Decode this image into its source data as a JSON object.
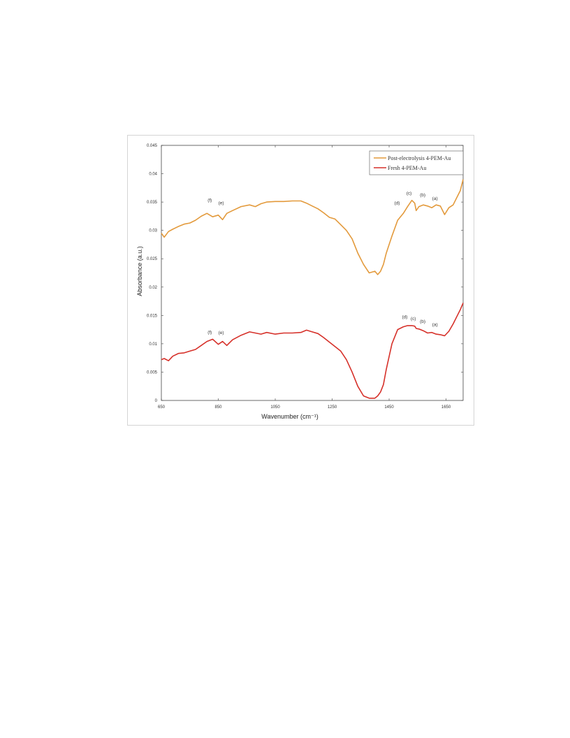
{
  "chart_data": {
    "type": "line",
    "xlabel": "Wavenumber (cm⁻¹)",
    "ylabel": "Absorbance (a.u.)",
    "xlim": [
      650,
      1710
    ],
    "ylim": [
      0,
      0.045
    ],
    "xticks": [
      650,
      850,
      1050,
      1250,
      1450,
      1650
    ],
    "xtick_labels": [
      "650",
      "850",
      "1050",
      "1250",
      "1450",
      "1650"
    ],
    "yticks": [
      0,
      0.005,
      0.01,
      0.015,
      0.02,
      0.025,
      0.03,
      0.035,
      0.04,
      0.045
    ],
    "ytick_labels": [
      "0",
      "0.005",
      "0.01",
      "0.015",
      "0.02",
      "0.025",
      "0.03",
      "0.035",
      "0.04",
      "0.045"
    ],
    "legend_position": "top-right",
    "series": [
      {
        "name": "Post-electrolysis 4-PEM-Au",
        "color": "#e39a3c",
        "x": [
          650,
          660,
          675,
          690,
          710,
          730,
          750,
          770,
          790,
          810,
          830,
          850,
          865,
          880,
          900,
          930,
          960,
          980,
          1000,
          1020,
          1050,
          1080,
          1110,
          1140,
          1160,
          1180,
          1200,
          1220,
          1240,
          1260,
          1280,
          1300,
          1320,
          1340,
          1360,
          1380,
          1400,
          1410,
          1420,
          1430,
          1440,
          1460,
          1480,
          1500,
          1515,
          1530,
          1540,
          1545,
          1555,
          1570,
          1585,
          1600,
          1615,
          1630,
          1645,
          1660,
          1675,
          1690,
          1700,
          1710
        ],
        "y": [
          0.0295,
          0.0288,
          0.0298,
          0.0302,
          0.0307,
          0.0311,
          0.0313,
          0.0318,
          0.0325,
          0.033,
          0.0324,
          0.0327,
          0.0319,
          0.033,
          0.0335,
          0.0342,
          0.0345,
          0.0342,
          0.0347,
          0.035,
          0.0351,
          0.0351,
          0.0352,
          0.0352,
          0.0348,
          0.0343,
          0.0338,
          0.0331,
          0.0323,
          0.032,
          0.031,
          0.03,
          0.0285,
          0.026,
          0.024,
          0.0225,
          0.0228,
          0.0222,
          0.0228,
          0.024,
          0.026,
          0.029,
          0.0318,
          0.033,
          0.0342,
          0.0353,
          0.0348,
          0.0335,
          0.0342,
          0.0345,
          0.0343,
          0.034,
          0.0345,
          0.0343,
          0.0328,
          0.034,
          0.0345,
          0.036,
          0.037,
          0.039
        ]
      },
      {
        "name": "Fresh 4-PEM-Au",
        "color": "#d6312a",
        "x": [
          650,
          660,
          675,
          690,
          710,
          730,
          750,
          770,
          790,
          810,
          830,
          850,
          865,
          880,
          900,
          930,
          960,
          980,
          1000,
          1020,
          1050,
          1080,
          1110,
          1140,
          1160,
          1180,
          1200,
          1220,
          1240,
          1260,
          1280,
          1300,
          1320,
          1340,
          1360,
          1380,
          1400,
          1410,
          1420,
          1430,
          1440,
          1460,
          1480,
          1500,
          1515,
          1530,
          1540,
          1545,
          1555,
          1570,
          1585,
          1600,
          1615,
          1630,
          1645,
          1660,
          1675,
          1690,
          1700,
          1710
        ],
        "y": [
          0.0072,
          0.0074,
          0.007,
          0.0078,
          0.0083,
          0.0084,
          0.0087,
          0.009,
          0.0097,
          0.0104,
          0.0108,
          0.0099,
          0.0104,
          0.0097,
          0.0107,
          0.0115,
          0.0121,
          0.0119,
          0.0117,
          0.012,
          0.0117,
          0.0119,
          0.0119,
          0.012,
          0.0124,
          0.0121,
          0.0118,
          0.0111,
          0.0103,
          0.0095,
          0.0087,
          0.0072,
          0.005,
          0.0025,
          0.0008,
          0.0004,
          0.0004,
          0.0008,
          0.0015,
          0.0028,
          0.0055,
          0.01,
          0.0125,
          0.013,
          0.0132,
          0.0132,
          0.0131,
          0.0127,
          0.0126,
          0.0123,
          0.0119,
          0.012,
          0.0117,
          0.0116,
          0.0114,
          0.0122,
          0.0135,
          0.015,
          0.016,
          0.0172
        ]
      }
    ],
    "annotations": [
      {
        "text": "(f)",
        "series": 0,
        "x": 820,
        "y": 0.0351
      },
      {
        "text": "(e)",
        "series": 0,
        "x": 860,
        "y": 0.0346
      },
      {
        "text": "(d)",
        "series": 0,
        "x": 1478,
        "y": 0.0346
      },
      {
        "text": "(c)",
        "series": 0,
        "x": 1520,
        "y": 0.0363
      },
      {
        "text": "(b)",
        "series": 0,
        "x": 1568,
        "y": 0.036
      },
      {
        "text": "(a)",
        "series": 0,
        "x": 1611,
        "y": 0.0354
      },
      {
        "text": "(f)",
        "series": 1,
        "x": 820,
        "y": 0.0118
      },
      {
        "text": "(e)",
        "series": 1,
        "x": 860,
        "y": 0.0117
      },
      {
        "text": "(d)",
        "series": 1,
        "x": 1505,
        "y": 0.0145
      },
      {
        "text": "(c)",
        "series": 1,
        "x": 1535,
        "y": 0.0142
      },
      {
        "text": "(b)",
        "series": 1,
        "x": 1568,
        "y": 0.0137
      },
      {
        "text": "(a)",
        "series": 1,
        "x": 1611,
        "y": 0.0131
      }
    ]
  }
}
